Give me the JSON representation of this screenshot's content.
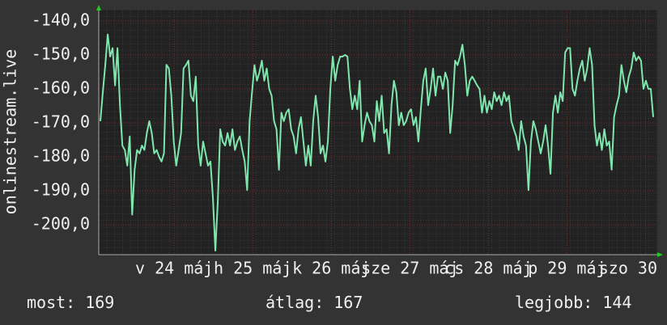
{
  "chart_data": {
    "type": "line",
    "y_label": "onlinestream.live",
    "ylim": [
      -208.8,
      -136.7
    ],
    "yticks": [
      {
        "value": -140,
        "label": "-140,0"
      },
      {
        "value": -150,
        "label": "-150,0"
      },
      {
        "value": -160,
        "label": "-160,0"
      },
      {
        "value": -170,
        "label": "-170,0"
      },
      {
        "value": -180,
        "label": "-180,0"
      },
      {
        "value": -190,
        "label": "-190,0"
      },
      {
        "value": -200,
        "label": "-200,0"
      }
    ],
    "xlim": [
      23.04,
      30.15
    ],
    "xticks": [
      {
        "value": 24,
        "label": "v 24 máj"
      },
      {
        "value": 25,
        "label": "h 25 máj"
      },
      {
        "value": 26,
        "label": "k 26 máj"
      },
      {
        "value": 27,
        "label": "sze 27 máj"
      },
      {
        "value": 28,
        "label": "cs 28 máj"
      },
      {
        "value": 29,
        "label": "p 29 máj"
      },
      {
        "value": 30,
        "label": "szo 30"
      }
    ],
    "grid": true,
    "series": [
      {
        "color": "#7fe6ad",
        "values": [
          -169.5,
          -161,
          -153,
          -144,
          -150.5,
          -148,
          -159,
          -148,
          -164.8,
          -176.7,
          -178,
          -182.6,
          -174,
          -197,
          -183.8,
          -178,
          -179,
          -176.7,
          -178,
          -173,
          -169.5,
          -173,
          -179,
          -178,
          -180,
          -181.4,
          -179,
          -152.9,
          -154,
          -162,
          -175.5,
          -182.6,
          -178,
          -173,
          -154,
          -153,
          -151.7,
          -162,
          -163.6,
          -156.4,
          -176.7,
          -182.6,
          -175.5,
          -179,
          -182.6,
          -181.4,
          -192,
          -207.6,
          -193.3,
          -171.9,
          -175.5,
          -176.7,
          -173,
          -176.7,
          -171.9,
          -178,
          -175.5,
          -174,
          -178,
          -181.4,
          -189.8,
          -169.5,
          -161,
          -153,
          -157.6,
          -155.2,
          -151.7,
          -157.6,
          -154,
          -160,
          -162,
          -169.5,
          -171.9,
          -183.8,
          -167,
          -169.5,
          -167,
          -166,
          -171.9,
          -174,
          -179,
          -171.9,
          -168.3,
          -175.5,
          -182.6,
          -176.7,
          -182.6,
          -169.5,
          -162,
          -168.3,
          -179,
          -176.7,
          -181.4,
          -175.5,
          -160,
          -150.5,
          -157.6,
          -153,
          -150.5,
          -150.5,
          -150,
          -150.5,
          -160,
          -166,
          -162,
          -166,
          -157.6,
          -175.5,
          -170.7,
          -167,
          -169.5,
          -170.7,
          -175.5,
          -163.6,
          -169.5,
          -162,
          -173,
          -171.9,
          -179,
          -164.8,
          -157.6,
          -161,
          -170.7,
          -167,
          -170.7,
          -169.5,
          -167,
          -166,
          -170.7,
          -168.3,
          -175.5,
          -166,
          -157.6,
          -154,
          -164.8,
          -160,
          -154,
          -162,
          -156.4,
          -156.4,
          -160,
          -155.2,
          -157.6,
          -173,
          -164.8,
          -151.7,
          -153,
          -150.5,
          -147,
          -153,
          -162,
          -157.6,
          -156.4,
          -157.6,
          -159,
          -160,
          -167,
          -162,
          -167,
          -163.6,
          -166,
          -161,
          -163.6,
          -162,
          -164.8,
          -161,
          -163.6,
          -162,
          -169.5,
          -171.9,
          -174,
          -178,
          -169.5,
          -174,
          -176.7,
          -189.8,
          -175.5,
          -169.5,
          -171.9,
          -175.5,
          -179,
          -175.5,
          -170.7,
          -176.7,
          -185,
          -167,
          -162,
          -167,
          -161,
          -163.6,
          -149.3,
          -148,
          -148,
          -160,
          -162,
          -157.6,
          -154,
          -151.7,
          -157.6,
          -154,
          -148,
          -153,
          -170.7,
          -176.7,
          -173,
          -178,
          -171.9,
          -176.7,
          -175.5,
          -183.8,
          -168.3,
          -164.8,
          -162,
          -153,
          -157.6,
          -161,
          -156.4,
          -154,
          -149.3,
          -151.7,
          -150.5,
          -151.7,
          -160,
          -157.6,
          -160,
          -160,
          -168.3
        ]
      }
    ],
    "stats": [
      {
        "label": "most:",
        "value": 169
      },
      {
        "label": "átlag:",
        "value": 167
      },
      {
        "label": "legjobb:",
        "value": 144
      }
    ]
  }
}
